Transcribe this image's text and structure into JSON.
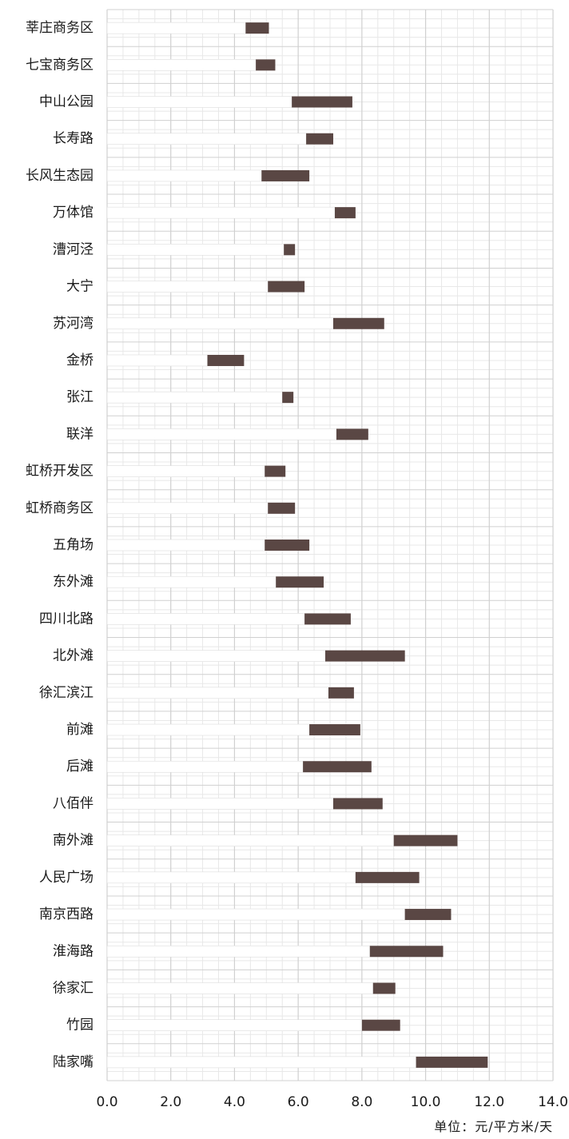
{
  "chart_data": {
    "type": "bar",
    "orientation": "horizontal",
    "stacked": true,
    "categories": [
      "莘庄商务区",
      "七宝商务区",
      "中山公园",
      "长寿路",
      "长风生态园",
      "万体馆",
      "漕河泾",
      "大宁",
      "苏河湾",
      "金桥",
      "张江",
      "联洋",
      "虹桥开发区",
      "虹桥商务区",
      "五角场",
      "东外滩",
      "四川北路",
      "北外滩",
      "徐汇滨江",
      "前滩",
      "后滩",
      "八佰伴",
      "南外滩",
      "人民广场",
      "南京西路",
      "淮海路",
      "徐家汇",
      "竹园",
      "陆家嘴"
    ],
    "series": [
      {
        "values": [
          4.35,
          4.67,
          5.8,
          6.25,
          4.85,
          7.15,
          5.55,
          5.05,
          7.1,
          3.15,
          5.5,
          7.2,
          4.95,
          5.05,
          4.95,
          5.3,
          6.2,
          6.85,
          6.95,
          6.35,
          6.15,
          7.1,
          9.0,
          7.8,
          9.35,
          8.25,
          8.35,
          8.0,
          9.7
        ]
      },
      {
        "values": [
          0.73,
          0.61,
          1.9,
          0.85,
          1.5,
          0.65,
          0.35,
          1.15,
          1.6,
          1.15,
          0.35,
          1.0,
          0.65,
          0.85,
          1.4,
          1.5,
          1.45,
          2.5,
          0.8,
          1.6,
          2.15,
          1.55,
          2.0,
          2.0,
          1.45,
          2.3,
          0.7,
          1.2,
          2.25
        ]
      }
    ],
    "colors": {
      "base_fill": "#ffffff",
      "range_fill": "#5a4744",
      "grid_major": "#d0d0d0",
      "grid_minor": "#e8e8e8"
    },
    "xlim": [
      0,
      14
    ],
    "x_ticks": [
      "0.0",
      "2.0",
      "4.0",
      "6.0",
      "8.0",
      "10.0",
      "12.0",
      "14.0"
    ],
    "grid": true,
    "unit_label": "单位：元/平方米/天"
  }
}
